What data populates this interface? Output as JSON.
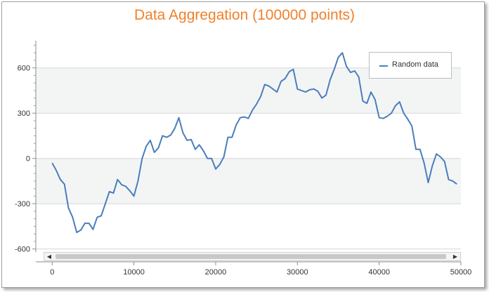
{
  "chart_data": {
    "type": "line",
    "title": "Data Aggregation (100000 points)",
    "xlabel": "",
    "ylabel": "",
    "xlim": [
      -2000,
      50000
    ],
    "ylim": [
      -620,
      780
    ],
    "x_ticks": [
      0,
      10000,
      20000,
      30000,
      40000,
      50000
    ],
    "y_ticks": [
      -600,
      -300,
      0,
      300,
      600
    ],
    "grid": "horizontal",
    "bands": [
      [
        -300,
        0
      ],
      [
        300,
        600
      ]
    ],
    "legend_position": "top-right",
    "series": [
      {
        "name": "Random data",
        "color": "#4a7ebb",
        "x": [
          0,
          500,
          1000,
          1500,
          2000,
          2500,
          3000,
          3500,
          4000,
          4500,
          5000,
          5500,
          6000,
          6500,
          7000,
          7500,
          8000,
          8500,
          9000,
          9500,
          10000,
          10500,
          11000,
          11500,
          12000,
          12500,
          13000,
          13500,
          14000,
          14500,
          15000,
          15500,
          16000,
          16500,
          17000,
          17500,
          18000,
          18500,
          19000,
          19500,
          20000,
          20500,
          21000,
          21500,
          22000,
          22500,
          23000,
          23500,
          24000,
          24500,
          25000,
          25500,
          26000,
          26500,
          27000,
          27500,
          28000,
          28500,
          29000,
          29500,
          30000,
          30500,
          31000,
          31500,
          32000,
          32500,
          33000,
          33500,
          34000,
          34500,
          35000,
          35500,
          36000,
          36500,
          37000,
          37500,
          38000,
          38500,
          39000,
          39500,
          40000,
          40500,
          41000,
          41500,
          42000,
          42500,
          43000,
          43500,
          44000,
          44500,
          45000,
          45500,
          46000,
          46500,
          47000,
          47500,
          48000,
          48500,
          49000,
          49500
        ],
        "y": [
          -30,
          -80,
          -140,
          -170,
          -330,
          -390,
          -490,
          -475,
          -430,
          -430,
          -470,
          -390,
          -380,
          -300,
          -220,
          -230,
          -140,
          -175,
          -185,
          -215,
          -250,
          -150,
          0,
          80,
          120,
          40,
          70,
          150,
          140,
          155,
          200,
          270,
          170,
          120,
          125,
          60,
          90,
          50,
          0,
          0,
          -70,
          -40,
          10,
          140,
          140,
          220,
          270,
          275,
          265,
          320,
          360,
          410,
          490,
          480,
          460,
          440,
          510,
          530,
          575,
          590,
          460,
          450,
          440,
          455,
          460,
          445,
          400,
          420,
          520,
          590,
          670,
          700,
          610,
          570,
          580,
          540,
          380,
          365,
          440,
          390,
          270,
          265,
          280,
          300,
          350,
          375,
          300,
          260,
          215,
          60,
          60,
          -30,
          -160,
          -50,
          30,
          10,
          -20,
          -140,
          -150,
          -170
        ]
      }
    ]
  },
  "legend": {
    "label": "Random data"
  },
  "scrollbar": {
    "left_arrow": "◀",
    "right_arrow": "▶"
  }
}
